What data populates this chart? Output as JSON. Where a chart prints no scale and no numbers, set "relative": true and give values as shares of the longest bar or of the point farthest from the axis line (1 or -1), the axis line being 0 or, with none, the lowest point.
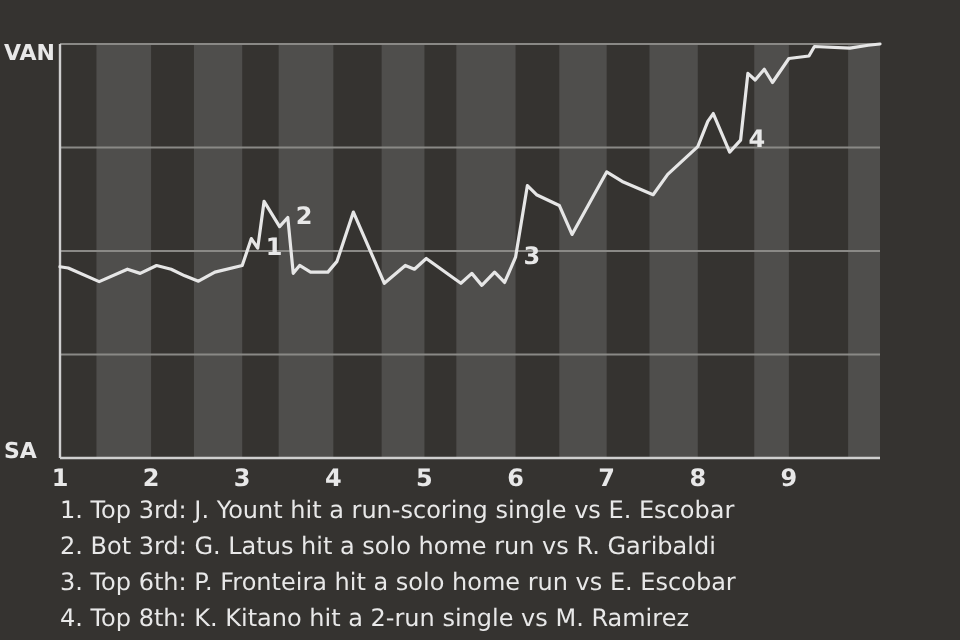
{
  "chart_data": {
    "type": "line",
    "relative": true,
    "xlim": [
      1,
      10
    ],
    "xticks": [
      1,
      2,
      3,
      4,
      5,
      6,
      7,
      8,
      9
    ],
    "grid": "y",
    "marker": "none",
    "line_style": "solid",
    "bands": [
      {
        "axis": "x",
        "from": 1.4,
        "to": 2,
        "color": "#4f4e4c"
      },
      {
        "axis": "x",
        "from": 2.47,
        "to": 3,
        "color": "#4f4e4c"
      },
      {
        "axis": "x",
        "from": 3.4,
        "to": 4,
        "color": "#4f4e4c"
      },
      {
        "axis": "x",
        "from": 4.53,
        "to": 5,
        "color": "#4f4e4c"
      },
      {
        "axis": "x",
        "from": 5.35,
        "to": 6,
        "color": "#4f4e4c"
      },
      {
        "axis": "x",
        "from": 6.48,
        "to": 7,
        "color": "#4f4e4c"
      },
      {
        "axis": "x",
        "from": 7.47,
        "to": 8,
        "color": "#4f4e4c"
      },
      {
        "axis": "x",
        "from": 8.62,
        "to": 9,
        "color": "#4f4e4c"
      },
      {
        "axis": "x",
        "from": 9.65,
        "to": 10,
        "color": "#4f4e4c"
      }
    ],
    "series": [
      {
        "color": "#e6e6e6",
        "x": [
          1,
          1.09,
          1.43,
          1.74,
          1.88,
          2.06,
          2.22,
          2.37,
          2.52,
          2.7,
          3,
          3.1,
          3.17,
          3.24,
          3.41,
          3.5,
          3.56,
          3.63,
          3.75,
          3.94,
          4.04,
          4.22,
          4.56,
          4.79,
          4.89,
          5.02,
          5.33,
          5.4,
          5.52,
          5.63,
          5.77,
          5.88,
          6,
          6.13,
          6.23,
          6.48,
          6.62,
          7,
          7.17,
          7.51,
          7.67,
          8,
          8.11,
          8.17,
          8.35,
          8.47,
          8.55,
          8.63,
          8.73,
          8.82,
          9,
          9.22,
          9.28,
          9.67,
          9.87,
          10
        ],
        "values": [
          0.462,
          0.459,
          0.426,
          0.456,
          0.446,
          0.465,
          0.456,
          0.44,
          0.427,
          0.449,
          0.465,
          0.53,
          0.507,
          0.62,
          0.559,
          0.581,
          0.446,
          0.465,
          0.449,
          0.449,
          0.475,
          0.594,
          0.422,
          0.465,
          0.456,
          0.482,
          0.433,
          0.422,
          0.446,
          0.417,
          0.449,
          0.424,
          0.485,
          0.658,
          0.636,
          0.61,
          0.54,
          0.691,
          0.668,
          0.636,
          0.685,
          0.752,
          0.813,
          0.832,
          0.739,
          0.768,
          0.929,
          0.913,
          0.939,
          0.907,
          0.965,
          0.971,
          0.994,
          0.99,
          0.997,
          1.0
        ]
      }
    ],
    "annotations": [
      "VAN",
      "SA",
      {
        "text": "1",
        "x": 3.17,
        "y": 0.507
      },
      {
        "text": "2",
        "x": 3.5,
        "y": 0.581
      },
      {
        "text": "3",
        "x": 6,
        "y": 0.485
      },
      {
        "text": "4",
        "x": 8.47,
        "y": 0.768
      },
      "1. Top 3rd: J. Yount hit a run-scoring single vs E. Escobar",
      "2. Bot 3rd: G. Latus hit a solo home run vs R. Garibaldi",
      "3. Top 6th: P. Fronteira hit a solo home run vs E. Escobar",
      "4. Top 8th: K. Kitano hit a 2-run single vs M. Ramirez"
    ]
  }
}
